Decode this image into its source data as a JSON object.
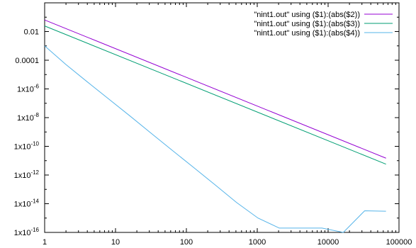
{
  "chart_data": {
    "type": "line",
    "x_scale": "log",
    "y_scale": "log",
    "xlim": [
      1,
      100000
    ],
    "ylim": [
      1e-16,
      1
    ],
    "x_ticks": [
      {
        "value": 1,
        "label": "1"
      },
      {
        "value": 10,
        "label": "10"
      },
      {
        "value": 100,
        "label": "100"
      },
      {
        "value": 1000,
        "label": "1000"
      },
      {
        "value": 10000,
        "label": "10000"
      },
      {
        "value": 100000,
        "label": "100000"
      }
    ],
    "y_ticks": [
      {
        "value": 0.01,
        "label": "0.01"
      },
      {
        "value": 0.0001,
        "label": "0.0001"
      },
      {
        "value": 1e-06,
        "label": "1x10-6"
      },
      {
        "value": 1e-08,
        "label": "1x10-8"
      },
      {
        "value": 1e-10,
        "label": "1x10-10"
      },
      {
        "value": 1e-12,
        "label": "1x10-12"
      },
      {
        "value": 1e-14,
        "label": "1x10-14"
      },
      {
        "value": 1e-16,
        "label": "1x10-16"
      }
    ],
    "legend_position": "top-right",
    "grid": false,
    "series": [
      {
        "name": "\"nint1.out\" using ($1):(abs($2))",
        "color": "#9400d3",
        "points": [
          [
            1,
            0.0641
          ],
          [
            65536,
            1.49e-11
          ]
        ]
      },
      {
        "name": "\"nint1.out\" using ($1):(abs($3))",
        "color": "#009e73",
        "points": [
          [
            1,
            0.0245
          ],
          [
            65536,
            5.71e-12
          ]
        ]
      },
      {
        "name": "\"nint1.out\" using ($1):(abs($4))",
        "color": "#56b4e9",
        "points": [
          [
            1,
            0.001
          ],
          [
            2,
            5e-05
          ],
          [
            4,
            3.1e-06
          ],
          [
            8,
            2e-07
          ],
          [
            16,
            1.3e-08
          ],
          [
            32,
            8e-10
          ],
          [
            64,
            5e-11
          ],
          [
            128,
            3.2e-12
          ],
          [
            256,
            2e-13
          ],
          [
            512,
            1.2e-14
          ],
          [
            1024,
            1e-15
          ],
          [
            2048,
            2e-16
          ],
          [
            4096,
            2e-16
          ],
          [
            8192,
            2e-16
          ],
          [
            16384,
            1e-16
          ],
          [
            32768,
            3.2e-15
          ],
          [
            65536,
            3e-15
          ]
        ]
      }
    ]
  }
}
